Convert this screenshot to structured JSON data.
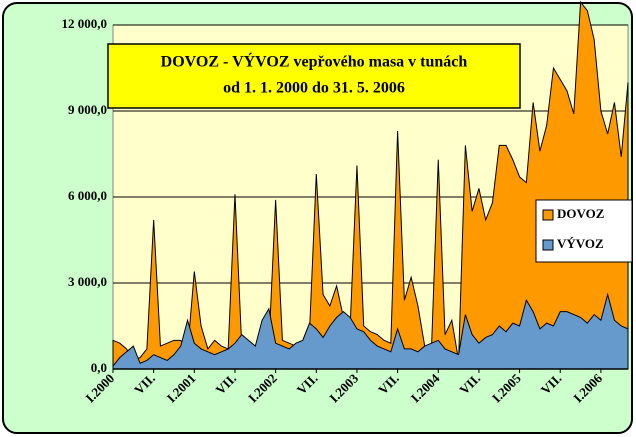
{
  "chart_data": {
    "type": "area",
    "title": "DOVOZ - VÝVOZ vepřového masa v tunách",
    "subtitle": "od 1. 1. 2000 do 31. 5. 2006",
    "categories": [
      "I.2000",
      null,
      null,
      null,
      null,
      null,
      "VII.",
      null,
      null,
      null,
      null,
      null,
      "I.2001",
      null,
      null,
      null,
      null,
      null,
      "VII.",
      null,
      null,
      null,
      null,
      null,
      "I.2002",
      null,
      null,
      null,
      null,
      null,
      "VII.",
      null,
      null,
      null,
      null,
      null,
      "I.2003",
      null,
      null,
      null,
      null,
      null,
      "VII.",
      null,
      null,
      null,
      null,
      null,
      "I.2004",
      null,
      null,
      null,
      null,
      null,
      "VII.",
      null,
      null,
      null,
      null,
      null,
      "I.2005",
      null,
      null,
      null,
      null,
      null,
      "VII.",
      null,
      null,
      null,
      null,
      null,
      "I.2006",
      null,
      null,
      null,
      null
    ],
    "series": [
      {
        "name": "DOVOZ",
        "color": "#ff9900",
        "values": [
          1000,
          900,
          700,
          300,
          400,
          700,
          5200,
          800,
          900,
          1000,
          1000,
          600,
          3400,
          1500,
          700,
          1000,
          800,
          700,
          6100,
          800,
          700,
          600,
          700,
          800,
          5900,
          1000,
          900,
          800,
          1000,
          1300,
          6800,
          2600,
          2200,
          2900,
          1800,
          1500,
          7100,
          1500,
          1300,
          1200,
          1000,
          900,
          8300,
          2400,
          3200,
          2200,
          800,
          700,
          7300,
          1200,
          1700,
          300,
          7800,
          5500,
          6300,
          5200,
          5800,
          7800,
          7800,
          7300,
          6700,
          6500,
          9300,
          7600,
          8500,
          10500,
          10100,
          9700,
          8900,
          12800,
          12500,
          11500,
          9000,
          8200,
          9300,
          7400,
          10000
        ]
      },
      {
        "name": "VÝVOZ",
        "color": "#6699cc",
        "values": [
          100,
          400,
          600,
          800,
          200,
          300,
          500,
          400,
          300,
          500,
          800,
          1700,
          900,
          700,
          600,
          500,
          600,
          700,
          900,
          1200,
          1000,
          800,
          1700,
          2100,
          900,
          800,
          700,
          900,
          1000,
          1600,
          1400,
          1100,
          1500,
          1800,
          2000,
          1800,
          1400,
          1300,
          1000,
          800,
          700,
          600,
          1400,
          700,
          700,
          600,
          800,
          900,
          1000,
          700,
          600,
          500,
          1900,
          1200,
          900,
          1100,
          1200,
          1500,
          1300,
          1600,
          1500,
          2400,
          2000,
          1400,
          1600,
          1500,
          2000,
          2000,
          1900,
          1800,
          1600,
          1900,
          1700,
          2600,
          1700,
          1500,
          1400
        ]
      }
    ],
    "ylim": [
      0,
      12000
    ],
    "yticks": [
      {
        "value": 0,
        "label": "0,0"
      },
      {
        "value": 3000,
        "label": "3 000,0"
      },
      {
        "value": 6000,
        "label": "6 000,0"
      },
      {
        "value": 9000,
        "label": "9 000,0"
      },
      {
        "value": 12000,
        "label": "12 000,0"
      }
    ],
    "grid": true,
    "legend": "right"
  }
}
